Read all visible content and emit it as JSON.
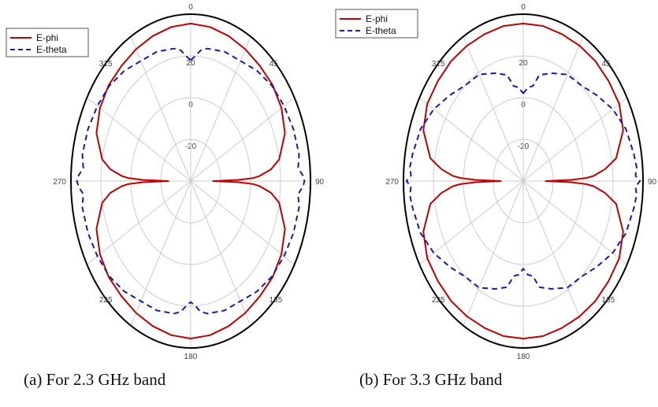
{
  "chart_data": [
    {
      "type": "polar-line",
      "panel": "a",
      "caption": "(a)  For 2.3 GHz band",
      "angle_labels": [
        "0",
        "45",
        "90",
        "135",
        "180",
        "225",
        "270",
        "315"
      ],
      "radial_tick_labels": [
        "-20",
        "0",
        "20"
      ],
      "radial_ticks": [
        -20,
        0,
        20
      ],
      "rlim": [
        -40,
        40
      ],
      "grid": true,
      "legend_position": "top-left",
      "series": [
        {
          "name": "E-phi",
          "color": "#c00000",
          "style": "solid",
          "theta": [
            0,
            10,
            20,
            30,
            40,
            50,
            60,
            70,
            80,
            84,
            87,
            88,
            89,
            90,
            91,
            92,
            93,
            96,
            100,
            110,
            120,
            130,
            140,
            150,
            160,
            170,
            180,
            190,
            200,
            210,
            220,
            230,
            240,
            250,
            260,
            264,
            267,
            268,
            269,
            270,
            271,
            272,
            273,
            276,
            280,
            290,
            300,
            310,
            320,
            330,
            340,
            350,
            360
          ],
          "r": [
            35.5,
            35,
            34,
            33,
            32,
            31.5,
            30,
            27,
            20,
            14,
            6,
            2,
            -8,
            -25,
            -8,
            2,
            6,
            14,
            20,
            27,
            30,
            31.5,
            32,
            33,
            34,
            35,
            35.5,
            35,
            34,
            33,
            32,
            31.5,
            30,
            27,
            20,
            14,
            6,
            2,
            -8,
            -25,
            -8,
            2,
            6,
            14,
            20,
            27,
            30,
            31.5,
            32,
            33,
            34,
            35,
            35.5
          ]
        },
        {
          "name": "E-theta",
          "color": "#1a1aa8",
          "style": "dashed",
          "theta": [
            0,
            3,
            6,
            10,
            20,
            30,
            40,
            50,
            60,
            70,
            80,
            85,
            88,
            90,
            92,
            95,
            100,
            110,
            120,
            130,
            140,
            150,
            160,
            170,
            174,
            177,
            180,
            183,
            186,
            190,
            200,
            210,
            220,
            230,
            240,
            250,
            260,
            265,
            268,
            270,
            272,
            275,
            280,
            290,
            300,
            310,
            320,
            330,
            340,
            350,
            354,
            357,
            360
          ],
          "r": [
            18,
            20,
            23,
            24.5,
            26,
            26.5,
            29,
            31,
            32,
            33,
            33.5,
            32,
            35,
            36,
            35,
            32,
            33.5,
            33,
            32,
            31,
            29,
            26.5,
            26,
            24.5,
            23,
            20,
            18,
            20,
            23,
            24.5,
            26,
            26.5,
            29,
            31,
            32,
            33,
            33.5,
            32,
            35,
            36,
            35,
            32,
            33.5,
            33,
            32,
            31,
            29,
            26.5,
            26,
            24.5,
            23,
            20,
            18
          ]
        }
      ]
    },
    {
      "type": "polar-line",
      "panel": "b",
      "caption": "(b) For 3.3 GHz band",
      "angle_labels": [
        "0",
        "45",
        "90",
        "135",
        "180",
        "225",
        "270",
        "315"
      ],
      "radial_tick_labels": [
        "-20",
        "0",
        "20"
      ],
      "radial_ticks": [
        -20,
        0,
        20
      ],
      "rlim": [
        -40,
        40
      ],
      "grid": true,
      "legend_position": "top-left",
      "series": [
        {
          "name": "E-phi",
          "color": "#c00000",
          "style": "solid",
          "theta": [
            0,
            10,
            20,
            30,
            40,
            50,
            60,
            70,
            80,
            84,
            87,
            88,
            89,
            90,
            91,
            92,
            93,
            96,
            100,
            110,
            120,
            130,
            140,
            150,
            160,
            170,
            180,
            190,
            200,
            210,
            220,
            230,
            240,
            250,
            260,
            264,
            267,
            268,
            269,
            270,
            271,
            272,
            273,
            276,
            280,
            290,
            300,
            310,
            320,
            330,
            340,
            350,
            360
          ],
          "r": [
            35.5,
            35.5,
            35,
            35,
            35,
            34.5,
            34,
            31,
            23,
            15,
            7,
            2,
            -8,
            -25,
            -8,
            2,
            7,
            15,
            23,
            31,
            34,
            34.5,
            35,
            35,
            35,
            35.5,
            35.5,
            35.5,
            35,
            35,
            35,
            34.5,
            34,
            31,
            23,
            15,
            7,
            2,
            -8,
            -25,
            -8,
            2,
            7,
            15,
            23,
            31,
            34,
            34.5,
            35,
            35,
            35,
            35.5,
            35.5
          ]
        },
        {
          "name": "E-theta",
          "color": "#1a1aa8",
          "style": "dashed",
          "theta": [
            0,
            4,
            8,
            12,
            20,
            30,
            40,
            50,
            60,
            70,
            80,
            85,
            88,
            90,
            92,
            95,
            100,
            110,
            120,
            130,
            140,
            150,
            160,
            168,
            172,
            176,
            180,
            184,
            188,
            192,
            200,
            210,
            220,
            230,
            240,
            250,
            260,
            265,
            268,
            270,
            272,
            275,
            280,
            290,
            300,
            310,
            320,
            330,
            340,
            348,
            352,
            356,
            360
          ],
          "r": [
            2,
            5,
            6,
            12,
            15,
            19,
            20,
            24,
            29,
            33,
            35,
            36,
            35,
            38,
            35,
            36,
            35,
            33,
            29,
            24,
            20,
            19,
            15,
            12,
            6,
            5,
            2,
            5,
            6,
            12,
            15,
            19,
            20,
            24,
            29,
            33,
            35,
            36,
            35,
            38,
            35,
            36,
            35,
            33,
            29,
            24,
            20,
            19,
            15,
            12,
            6,
            5,
            2
          ]
        }
      ]
    }
  ],
  "styles": {
    "grid_color": "#cccccc",
    "frame_color": "#000000",
    "background": "#ffffff"
  }
}
